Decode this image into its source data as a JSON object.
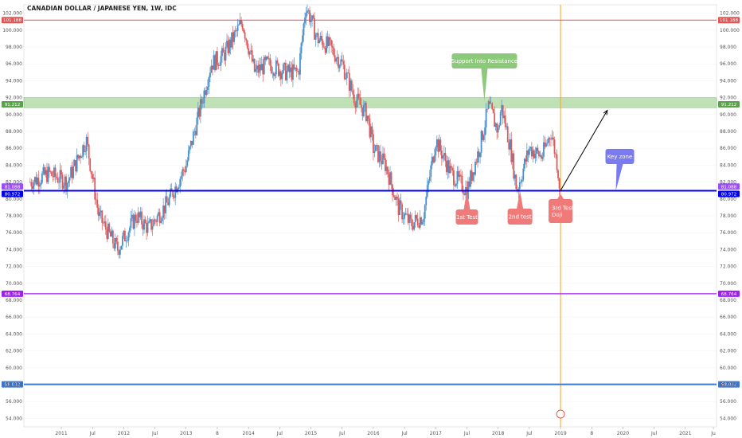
{
  "header": {
    "title": "CANADIAN DOLLAR / JAPANESE YEN, 1W, IDC"
  },
  "colors": {
    "up": "#4a90c8",
    "down": "#e05a5a",
    "resistance_zone": "#8cc97a",
    "resistance_line": "#e05555",
    "support_line": "#0000ee",
    "level_purple": "#a020f0",
    "level_blue": "#3a78d8",
    "vertical_marker": "#ffa020"
  },
  "chart_data": {
    "type": "candlestick",
    "title": "CANADIAN DOLLAR / JAPANESE YEN, 1W, IDC",
    "ylim": [
      53,
      103
    ],
    "y_ticks": [
      "54.000",
      "56.000",
      "58.000",
      "60.000",
      "62.000",
      "64.000",
      "66.000",
      "68.000",
      "70.000",
      "72.000",
      "74.000",
      "76.000",
      "78.000",
      "80.000",
      "82.000",
      "84.000",
      "86.000",
      "88.000",
      "90.000",
      "92.000",
      "94.000",
      "96.000",
      "98.000",
      "100.000",
      "102.000"
    ],
    "x_ticks": [
      "2011",
      "Jul",
      "2012",
      "Jul",
      "2013",
      "8",
      "2014",
      "Jul",
      "2015",
      "Jul",
      "2016",
      "Jul",
      "2017",
      "Jul",
      "2018",
      "Jul",
      "2019",
      "8",
      "2020",
      "Jul",
      "2021",
      "Ju"
    ],
    "price_path": [
      [
        "2010.5",
        82
      ],
      [
        "2010.8",
        83
      ],
      [
        "2011.1",
        82
      ],
      [
        "2011.4",
        87
      ],
      [
        "2011.6",
        78
      ],
      [
        "2011.9",
        74
      ],
      [
        "2012.2",
        78
      ],
      [
        "2012.4",
        76.5
      ],
      [
        "2012.7",
        79.5
      ],
      [
        "2013.0",
        84
      ],
      [
        "2013.4",
        96
      ],
      [
        "2013.6",
        97
      ],
      [
        "2013.9",
        101
      ],
      [
        "2014.1",
        95
      ],
      [
        "2014.3",
        96
      ],
      [
        "2014.6",
        95
      ],
      [
        "2014.8",
        95
      ],
      [
        "2014.92",
        103
      ],
      [
        "2015.1",
        99
      ],
      [
        "2015.3",
        98
      ],
      [
        "2015.5",
        96
      ],
      [
        "2015.7",
        92
      ],
      [
        "2015.9",
        90
      ],
      [
        "2016.0",
        86
      ],
      [
        "2016.2",
        84
      ],
      [
        "2016.4",
        79
      ],
      [
        "2016.6",
        77
      ],
      [
        "2016.8",
        78
      ],
      [
        "2017.0",
        87
      ],
      [
        "2017.25",
        83
      ],
      [
        "2017.5",
        81
      ],
      [
        "2017.7",
        86
      ],
      [
        "2017.85",
        91
      ],
      [
        "2018.0",
        88
      ],
      [
        "2018.05",
        91
      ],
      [
        "2018.2",
        86
      ],
      [
        "2018.3",
        81
      ],
      [
        "2018.5",
        86
      ],
      [
        "2018.7",
        85
      ],
      [
        "2018.85",
        88
      ],
      [
        "2018.95",
        84
      ],
      [
        "2019.0",
        80.5
      ]
    ],
    "levels": [
      {
        "value": 101.188,
        "label": "101.188"
      },
      {
        "value": 91.212,
        "label": "91.212"
      },
      {
        "value": 81.088,
        "label": "81.088"
      },
      {
        "value": 80.972,
        "label": "80.972"
      },
      {
        "value": 68.764,
        "label": "68.764"
      },
      {
        "value": 58.032,
        "label": "58.032"
      }
    ],
    "resistance_zone": [
      90.8,
      92.0
    ],
    "vertical_marker_x": "2019.0",
    "projection_arrow": {
      "from": [
        "2019.0",
        81
      ],
      "to": [
        "2019.75",
        90.5
      ]
    },
    "annotations": [
      {
        "id": "support-into-resistance",
        "text": "Support Into Resistance",
        "color": "#8cc97a"
      },
      {
        "id": "key-zone",
        "text": "Key zone",
        "color": "#7b7bf0"
      },
      {
        "id": "first-test",
        "text": "1st Test",
        "color": "#f07a7a"
      },
      {
        "id": "second-test",
        "text": "2nd test",
        "color": "#f07a7a"
      },
      {
        "id": "third-test",
        "text": "3rd Test\nDoji",
        "color": "#f07a7a"
      }
    ]
  }
}
